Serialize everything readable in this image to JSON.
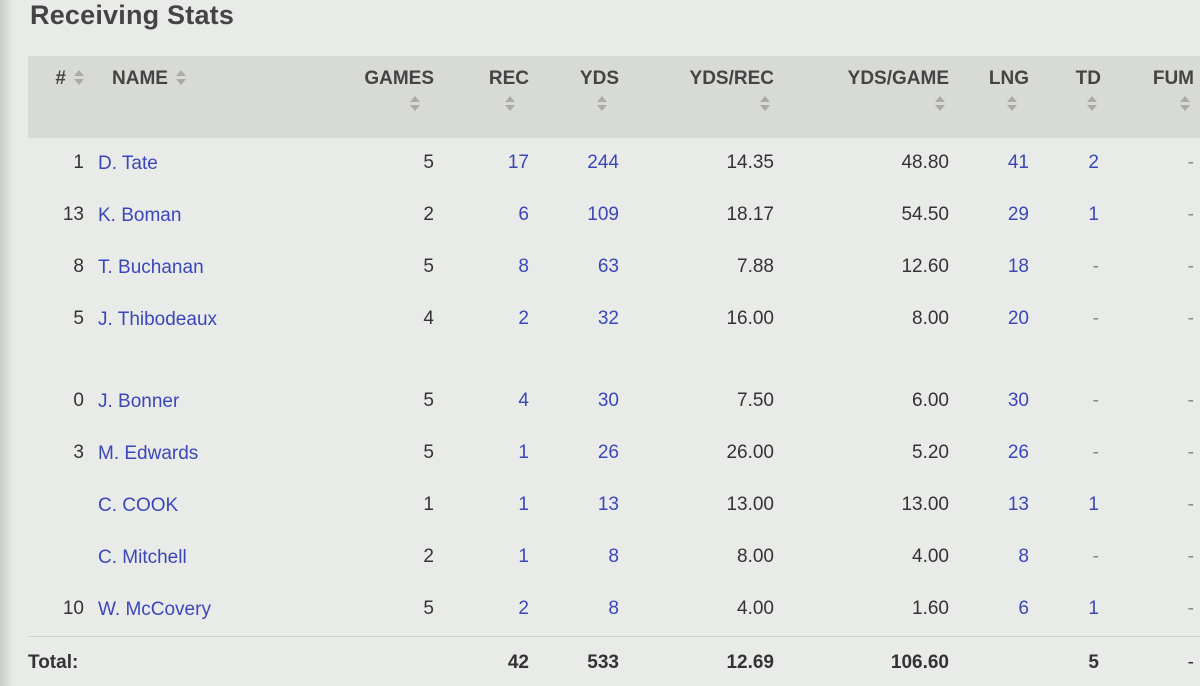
{
  "title": "Receiving Stats",
  "headers": {
    "num": "#",
    "name": "NAME",
    "games": "GAMES",
    "rec": "REC",
    "yds": "YDS",
    "yds_rec": "YDS/REC",
    "yds_game": "YDS/GAME",
    "lng": "LNG",
    "td": "TD",
    "fum": "FUM"
  },
  "rows": [
    {
      "num": "1",
      "name": "D. Tate",
      "games": "5",
      "rec": "17",
      "yds": "244",
      "yds_rec": "14.35",
      "yds_game": "48.80",
      "lng": "41",
      "td": "2",
      "fum": "-"
    },
    {
      "num": "13",
      "name": "K. Boman",
      "games": "2",
      "rec": "6",
      "yds": "109",
      "yds_rec": "18.17",
      "yds_game": "54.50",
      "lng": "29",
      "td": "1",
      "fum": "-"
    },
    {
      "num": "8",
      "name": "T. Buchanan",
      "games": "5",
      "rec": "8",
      "yds": "63",
      "yds_rec": "7.88",
      "yds_game": "12.60",
      "lng": "18",
      "td": "-",
      "fum": "-"
    },
    {
      "num": "5",
      "name": "J. Thibodeaux",
      "games": "4",
      "rec": "2",
      "yds": "32",
      "yds_rec": "16.00",
      "yds_game": "8.00",
      "lng": "20",
      "td": "-",
      "fum": "-"
    },
    {
      "num": "0",
      "name": "J. Bonner",
      "games": "5",
      "rec": "4",
      "yds": "30",
      "yds_rec": "7.50",
      "yds_game": "6.00",
      "lng": "30",
      "td": "-",
      "fum": "-"
    },
    {
      "num": "3",
      "name": "M. Edwards",
      "games": "5",
      "rec": "1",
      "yds": "26",
      "yds_rec": "26.00",
      "yds_game": "5.20",
      "lng": "26",
      "td": "-",
      "fum": "-"
    },
    {
      "num": "",
      "name": "C. COOK",
      "games": "1",
      "rec": "1",
      "yds": "13",
      "yds_rec": "13.00",
      "yds_game": "13.00",
      "lng": "13",
      "td": "1",
      "fum": "-"
    },
    {
      "num": "",
      "name": "C. Mitchell",
      "games": "2",
      "rec": "1",
      "yds": "8",
      "yds_rec": "8.00",
      "yds_game": "4.00",
      "lng": "8",
      "td": "-",
      "fum": "-"
    },
    {
      "num": "10",
      "name": "W. McCovery",
      "games": "5",
      "rec": "2",
      "yds": "8",
      "yds_rec": "4.00",
      "yds_game": "1.60",
      "lng": "6",
      "td": "1",
      "fum": "-"
    }
  ],
  "totals": {
    "label": "Total:",
    "games": "",
    "rec": "42",
    "yds": "533",
    "yds_rec": "12.69",
    "yds_game": "106.60",
    "lng": "",
    "td": "5",
    "fum": "-"
  },
  "colors": {
    "link": "#3b47b8",
    "header_bg": "#d8dad6",
    "page_bg": "#e9ebe8"
  }
}
